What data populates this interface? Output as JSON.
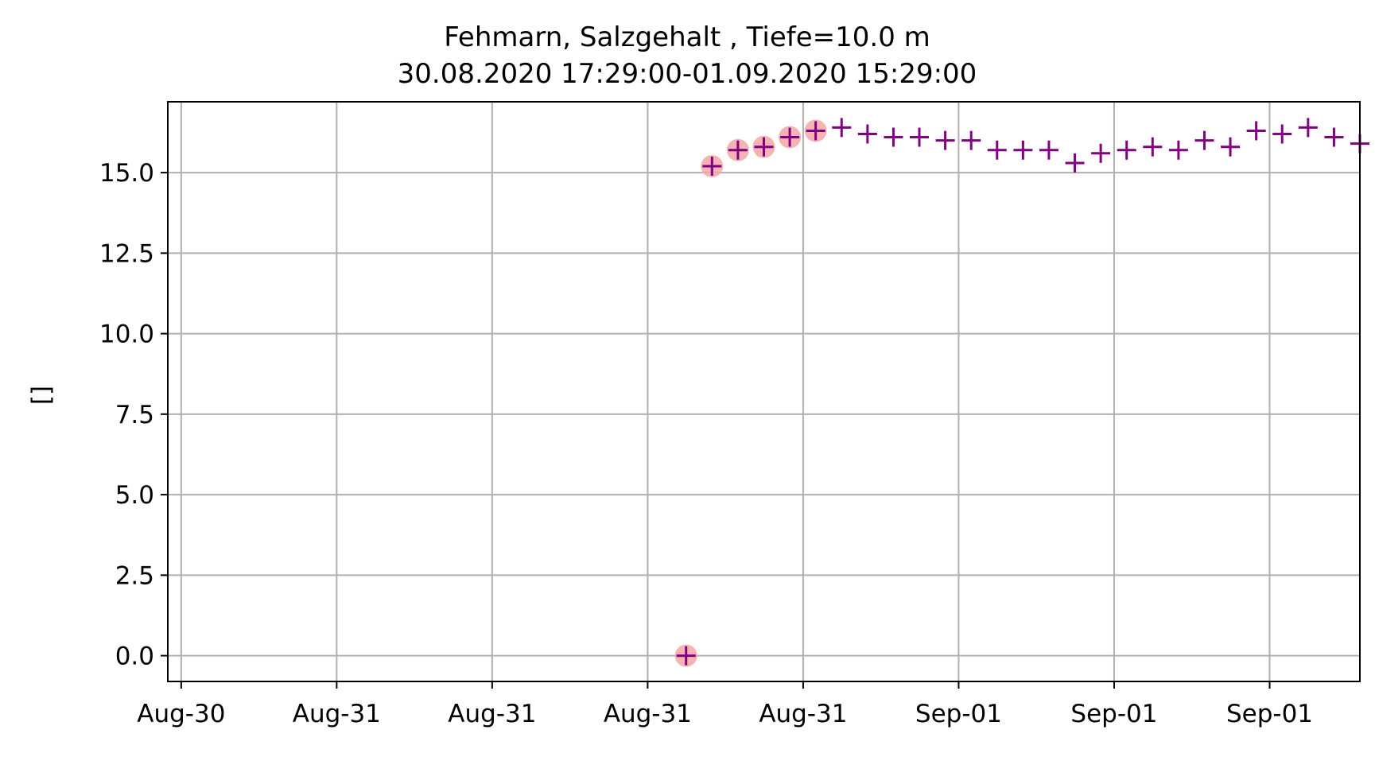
{
  "chart_data": {
    "type": "scatter",
    "title_line1": "Fehmarn, Salzgehalt , Tiefe=10.0 m",
    "title_line2": "30.08.2020 17:29:00-01.09.2020 15:29:00",
    "xlabel": "",
    "ylabel": "[]",
    "x_tick_labels": [
      "Aug-30",
      "Aug-31",
      "Aug-31",
      "Aug-31",
      "Aug-31",
      "Sep-01",
      "Sep-01",
      "Sep-01"
    ],
    "x_tick_values": [
      "2020-08-30 18:00",
      "2020-08-31 00:00",
      "2020-08-31 06:00",
      "2020-08-31 12:00",
      "2020-08-31 18:00",
      "2020-09-01 00:00",
      "2020-09-01 06:00",
      "2020-09-01 12:00"
    ],
    "xlim": [
      "2020-08-30 17:29",
      "2020-09-01 15:29"
    ],
    "y_ticks": [
      "0.0",
      "2.5",
      "5.0",
      "7.5",
      "10.0",
      "12.5",
      "15.0"
    ],
    "y_tick_values": [
      0,
      2.5,
      5,
      7.5,
      10,
      12.5,
      15
    ],
    "ylim": [
      -0.8,
      17.2
    ],
    "grid": true,
    "series": [
      {
        "marker": "plus",
        "color": "#800080",
        "x": [
          "2020-08-31 13:29",
          "2020-08-31 14:29",
          "2020-08-31 15:29",
          "2020-08-31 16:29",
          "2020-08-31 17:29",
          "2020-08-31 18:29",
          "2020-08-31 19:29",
          "2020-08-31 20:29",
          "2020-08-31 21:29",
          "2020-08-31 22:29",
          "2020-08-31 23:29",
          "2020-09-01 00:29",
          "2020-09-01 01:29",
          "2020-09-01 02:29",
          "2020-09-01 03:29",
          "2020-09-01 04:29",
          "2020-09-01 05:29",
          "2020-09-01 06:29",
          "2020-09-01 07:29",
          "2020-09-01 08:29",
          "2020-09-01 09:29",
          "2020-09-01 10:29",
          "2020-09-01 11:29",
          "2020-09-01 12:29",
          "2020-09-01 13:29",
          "2020-09-01 14:29",
          "2020-09-01 15:29"
        ],
        "values": [
          0.0,
          15.2,
          15.7,
          15.8,
          16.1,
          16.3,
          16.4,
          16.2,
          16.1,
          16.1,
          16.0,
          16.0,
          15.7,
          15.7,
          15.7,
          15.3,
          15.6,
          15.7,
          15.8,
          15.7,
          16.0,
          15.8,
          16.3,
          16.2,
          16.4,
          16.1,
          15.9
        ]
      },
      {
        "marker": "circle",
        "color": "#f4a6a6",
        "x": [
          "2020-08-31 13:29",
          "2020-08-31 14:29",
          "2020-08-31 15:29",
          "2020-08-31 16:29",
          "2020-08-31 17:29",
          "2020-08-31 18:29"
        ],
        "values": [
          0.0,
          15.2,
          15.7,
          15.8,
          16.1,
          16.3
        ]
      }
    ]
  }
}
